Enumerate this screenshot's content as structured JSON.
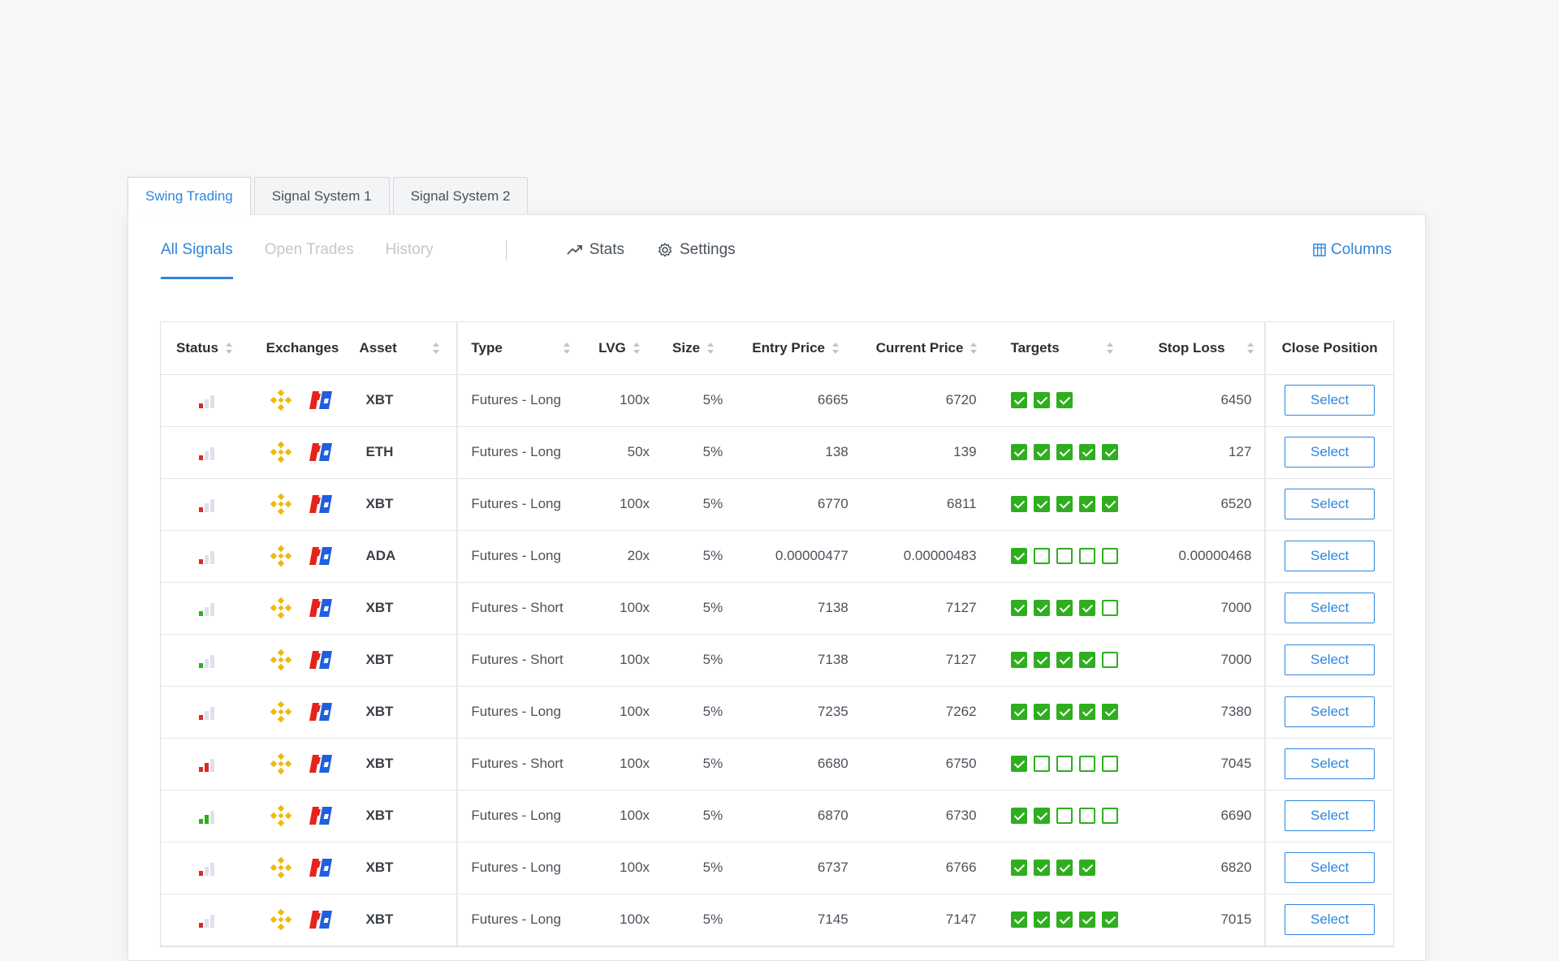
{
  "tabs": [
    {
      "label": "Swing Trading",
      "active": true
    },
    {
      "label": "Signal System 1",
      "active": false
    },
    {
      "label": "Signal System 2",
      "active": false
    }
  ],
  "subnav": {
    "all_signals": "All Signals",
    "open_trades": "Open Trades",
    "history": "History",
    "stats": "Stats",
    "settings": "Settings",
    "columns": "Columns"
  },
  "colors": {
    "accent": "#2e86e0",
    "target_green": "#2fae1f",
    "signal_red": "#e02a1f",
    "signal_green": "#2fae1f",
    "binance": "#f0b90b",
    "bitmex_red": "#e5231b",
    "bitmex_blue": "#1f5fe0"
  },
  "table": {
    "headers": {
      "status": "Status",
      "exchanges": "Exchanges",
      "asset": "Asset",
      "type": "Type",
      "lvg": "LVG",
      "size": "Size",
      "entry": "Entry Price",
      "current": "Current Price",
      "targets": "Targets",
      "stop": "Stop Loss",
      "close": "Close Position"
    },
    "exchange_icons": [
      "binance-icon",
      "bitmex-icon"
    ],
    "select_label": "Select",
    "rows": [
      {
        "signal_level": 1,
        "signal_color": "red",
        "asset": "XBT",
        "type": "Futures - Long",
        "lvg": "100x",
        "size": "5%",
        "entry": "6665",
        "current": "6720",
        "targets": [
          1,
          1,
          1
        ],
        "stop": "6450"
      },
      {
        "signal_level": 1,
        "signal_color": "red",
        "asset": "ETH",
        "type": "Futures - Long",
        "lvg": "50x",
        "size": "5%",
        "entry": "138",
        "current": "139",
        "targets": [
          1,
          1,
          1,
          1,
          1
        ],
        "stop": "127"
      },
      {
        "signal_level": 1,
        "signal_color": "red",
        "asset": "XBT",
        "type": "Futures - Long",
        "lvg": "100x",
        "size": "5%",
        "entry": "6770",
        "current": "6811",
        "targets": [
          1,
          1,
          1,
          1,
          1
        ],
        "stop": "6520"
      },
      {
        "signal_level": 1,
        "signal_color": "red",
        "asset": "ADA",
        "type": "Futures - Long",
        "lvg": "20x",
        "size": "5%",
        "entry": "0.00000477",
        "current": "0.00000483",
        "targets": [
          1,
          0,
          0,
          0,
          0
        ],
        "stop": "0.00000468"
      },
      {
        "signal_level": 1,
        "signal_color": "green",
        "asset": "XBT",
        "type": "Futures - Short",
        "lvg": "100x",
        "size": "5%",
        "entry": "7138",
        "current": "7127",
        "targets": [
          1,
          1,
          1,
          1,
          0
        ],
        "stop": "7000"
      },
      {
        "signal_level": 1,
        "signal_color": "green",
        "asset": "XBT",
        "type": "Futures - Short",
        "lvg": "100x",
        "size": "5%",
        "entry": "7138",
        "current": "7127",
        "targets": [
          1,
          1,
          1,
          1,
          0
        ],
        "stop": "7000"
      },
      {
        "signal_level": 1,
        "signal_color": "red",
        "asset": "XBT",
        "type": "Futures - Long",
        "lvg": "100x",
        "size": "5%",
        "entry": "7235",
        "current": "7262",
        "targets": [
          1,
          1,
          1,
          1,
          1
        ],
        "stop": "7380"
      },
      {
        "signal_level": 2,
        "signal_color": "red",
        "asset": "XBT",
        "type": "Futures - Short",
        "lvg": "100x",
        "size": "5%",
        "entry": "6680",
        "current": "6750",
        "targets": [
          1,
          0,
          0,
          0,
          0
        ],
        "stop": "7045"
      },
      {
        "signal_level": 2,
        "signal_color": "green",
        "asset": "XBT",
        "type": "Futures - Long",
        "lvg": "100x",
        "size": "5%",
        "entry": "6870",
        "current": "6730",
        "targets": [
          1,
          1,
          0,
          0,
          0
        ],
        "stop": "6690"
      },
      {
        "signal_level": 1,
        "signal_color": "red",
        "asset": "XBT",
        "type": "Futures - Long",
        "lvg": "100x",
        "size": "5%",
        "entry": "6737",
        "current": "6766",
        "targets": [
          1,
          1,
          1,
          1
        ],
        "stop": "6820"
      },
      {
        "signal_level": 1,
        "signal_color": "red",
        "asset": "XBT",
        "type": "Futures - Long",
        "lvg": "100x",
        "size": "5%",
        "entry": "7145",
        "current": "7147",
        "targets": [
          1,
          1,
          1,
          1,
          1
        ],
        "stop": "7015"
      }
    ]
  }
}
